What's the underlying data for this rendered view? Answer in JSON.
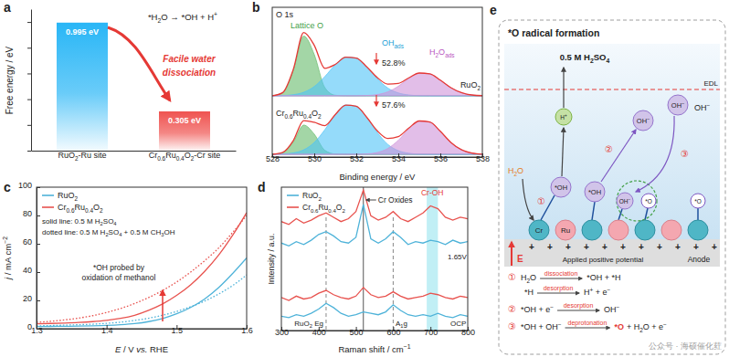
{
  "chart_data": [
    {
      "type": "bar",
      "label": "a",
      "ylabel": "Free energy / eV",
      "categories": [
        "RuO2-Ru site",
        "Cr0.6Ru0.4O2-Cr site"
      ],
      "values": [
        0.995,
        0.305
      ],
      "value_labels": [
        "0.995 eV",
        "0.305 eV"
      ],
      "data_labels": true,
      "colors": [
        "#29b6f6",
        "#ef5350"
      ],
      "ylim": [
        0,
        1.1
      ],
      "yticks": [
        0,
        0.2,
        0.4,
        0.6,
        0.8,
        1.0
      ],
      "tick_labels": "x",
      "annotations": [
        "*H2O → *OH + H+",
        "Facile water",
        "dissociation"
      ]
    },
    {
      "type": "area",
      "label": "b",
      "xlabel": "Binding energy / eV",
      "x": [
        528,
        528.5,
        529,
        529.5,
        530,
        530.5,
        531,
        531.5,
        532,
        532.5,
        533,
        533.5,
        534,
        534.5,
        535,
        535.5,
        536,
        536.5,
        537,
        537.5,
        538
      ],
      "xlim": [
        528,
        538
      ],
      "xticks": [
        528,
        530,
        532,
        534,
        536,
        538
      ],
      "ylim": [
        0,
        11
      ],
      "tick_labels": "x",
      "series": [
        {
          "type": "area",
          "color": "#66bb6a",
          "baseline": 4.5,
          "values": [
            4.5,
            4.72,
            6.35,
            8.89,
            7.53,
            5.11,
            4.54,
            4.5,
            4.5,
            4.5,
            4.5,
            4.5,
            4.5,
            4.5,
            4.5,
            4.5,
            4.5,
            4.5,
            4.5,
            4.5,
            4.5
          ]
        },
        {
          "type": "area",
          "color": "#4fc3f7",
          "baseline": 4.5,
          "values": [
            4.5,
            4.52,
            4.58,
            4.76,
            5.18,
            5.91,
            6.77,
            7.34,
            7.27,
            6.61,
            5.75,
            5.07,
            4.71,
            4.56,
            4.51,
            4.5,
            4.5,
            4.5,
            4.5,
            4.5,
            4.5
          ]
        },
        {
          "type": "area",
          "color": "#ce93d8",
          "baseline": 4.5,
          "values": [
            4.5,
            4.5,
            4.5,
            4.5,
            4.5,
            4.5,
            4.5,
            4.5,
            4.5,
            4.52,
            4.59,
            4.79,
            5.2,
            5.76,
            6.16,
            6.11,
            5.65,
            5.1,
            4.73,
            4.56,
            4.51
          ]
        },
        {
          "type": "line",
          "color": "#e53935",
          "values": [
            4.5,
            4.74,
            6.43,
            9.15,
            8.21,
            6.52,
            6.81,
            7.34,
            7.27,
            6.63,
            5.84,
            5.36,
            5.41,
            5.82,
            6.17,
            6.11,
            5.65,
            5.1,
            4.73,
            4.56,
            4.51
          ]
        },
        {
          "type": "area",
          "color": "#66bb6a",
          "baseline": 0.2,
          "values": [
            0.2,
            0.31,
            1.1,
            2.35,
            1.68,
            0.5,
            0.22,
            0.2,
            0.2,
            0.2,
            0.2,
            0.2,
            0.2,
            0.2,
            0.2,
            0.2,
            0.2,
            0.2,
            0.2,
            0.2,
            0.2
          ]
        },
        {
          "type": "area",
          "color": "#4fc3f7",
          "baseline": 0.2,
          "values": [
            0.2,
            0.23,
            0.3,
            0.53,
            1.07,
            2.0,
            3.1,
            3.82,
            3.73,
            2.89,
            1.8,
            0.93,
            0.47,
            0.28,
            0.21,
            0.2,
            0.2,
            0.2,
            0.2,
            0.2,
            0.2
          ]
        },
        {
          "type": "area",
          "color": "#ce93d8",
          "baseline": 0.2,
          "values": [
            0.2,
            0.2,
            0.2,
            0.2,
            0.2,
            0.2,
            0.2,
            0.2,
            0.2,
            0.23,
            0.33,
            0.63,
            1.23,
            2.05,
            2.64,
            2.57,
            1.89,
            1.08,
            0.54,
            0.29,
            0.21
          ]
        },
        {
          "type": "line",
          "color": "#e53935",
          "values": [
            0.2,
            0.34,
            1.2,
            2.68,
            2.55,
            2.3,
            3.12,
            3.82,
            3.73,
            2.92,
            1.93,
            1.36,
            1.5,
            2.13,
            2.65,
            2.57,
            1.89,
            1.08,
            0.54,
            0.29,
            0.21
          ]
        }
      ],
      "annotations": [
        {
          "text": "O 1s",
          "color": "#222222"
        },
        {
          "text": "Lattice O",
          "color": "#43a047"
        },
        {
          "text": "OHads",
          "color": "#1e9fd6"
        },
        {
          "text": "H2Oads",
          "color": "#b956c0"
        },
        {
          "text": "52.8%",
          "color": "#222222"
        },
        {
          "text": "RuO2",
          "color": "#222222"
        },
        {
          "text": "57.6%",
          "color": "#222222"
        },
        {
          "text": "Cr0.6Ru0.4O2",
          "color": "#222222"
        }
      ]
    },
    {
      "type": "line",
      "label": "c",
      "xlabel": "E / V vs. RHE",
      "ylabel": "j / mA cm−2",
      "x": [
        1.3,
        1.32,
        1.34,
        1.36,
        1.38,
        1.4,
        1.42,
        1.44,
        1.46,
        1.48,
        1.5,
        1.52,
        1.54,
        1.56,
        1.58,
        1.6
      ],
      "xlim": [
        1.3,
        1.6
      ],
      "xticks": [
        1.3,
        1.4,
        1.5,
        1.6
      ],
      "ylim": [
        0,
        100
      ],
      "yticks": [
        0,
        20,
        40,
        60,
        80,
        100
      ],
      "legend": "top-left",
      "series": [
        {
          "name": "RuO2",
          "color": "#4fb3d9",
          "line_style": "solid",
          "values": [
            1.5,
            1.6,
            1.7,
            1.8,
            2.0,
            2.3,
            2.8,
            3.6,
            5.0,
            7.2,
            10.5,
            15,
            21,
            29,
            39,
            50
          ]
        },
        {
          "color": "#4fb3d9",
          "line_style": "dotted",
          "values": [
            2.0,
            2.2,
            2.5,
            2.8,
            3.2,
            3.8,
            4.6,
            5.8,
            7.4,
            9.5,
            12.2,
            15.5,
            19.5,
            24.5,
            30.5,
            38
          ]
        },
        {
          "name": "Cr0.6Ru0.4O2",
          "color": "#e8534f",
          "line_style": "solid",
          "values": [
            3.5,
            3.7,
            4.0,
            4.4,
            5.0,
            5.9,
            7.3,
            9.5,
            13,
            17.5,
            23.5,
            31,
            40.5,
            52,
            66,
            82
          ]
        },
        {
          "color": "#e8534f",
          "line_style": "dotted",
          "values": [
            4.5,
            5.2,
            6.2,
            7.5,
            9.2,
            11.5,
            14.3,
            17.8,
            22,
            27,
            33,
            40,
            48,
            57,
            68,
            80
          ]
        }
      ],
      "annotations": [
        "solid line: 0.5 M H2SO4",
        "dotted line: 0.5 M H2SO4 + 0.5 M CH3OH",
        "*OH probed by",
        "oxidation of methanol"
      ]
    },
    {
      "type": "line",
      "label": "d",
      "xlabel": "Raman shift / cm−1",
      "ylabel": "Intensity / a.u.",
      "x": [
        300,
        320,
        340,
        360,
        380,
        400,
        420,
        440,
        460,
        480,
        500,
        520,
        540,
        560,
        580,
        600,
        620,
        640,
        660,
        680,
        700,
        720,
        740,
        760,
        780,
        800
      ],
      "xlim": [
        300,
        800
      ],
      "xticks": [
        300,
        400,
        500,
        600,
        700,
        800
      ],
      "ylim": [
        0,
        10
      ],
      "tick_labels": "x",
      "legend": "top-left",
      "series": [
        {
          "name": "RuO2",
          "color": "#4fb3d9",
          "values": [
            6.1,
            5.9,
            6.2,
            6.0,
            6.3,
            6.7,
            6.9,
            6.6,
            6.2,
            6.1,
            6.5,
            8.8,
            6.4,
            6.1,
            6.4,
            6.9,
            6.5,
            6.0,
            6.2,
            6.1,
            6.3,
            6.2,
            6.0,
            6.3,
            6.1,
            6.2
          ]
        },
        {
          "name": "Cr0.6Ru0.4O2",
          "color": "#e8534f",
          "values": [
            7.6,
            7.4,
            7.8,
            7.5,
            7.7,
            8.0,
            8.2,
            7.9,
            7.6,
            7.8,
            8.3,
            9.8,
            8.0,
            7.7,
            7.9,
            8.3,
            7.8,
            7.6,
            7.9,
            8.2,
            8.7,
            8.5,
            7.9,
            7.7,
            7.9,
            7.8
          ]
        },
        {
          "color": "#4fb3d9",
          "values": [
            1.0,
            0.9,
            1.1,
            1.0,
            1.2,
            1.5,
            1.9,
            1.6,
            1.2,
            1.0,
            1.1,
            1.3,
            1.2,
            1.1,
            1.3,
            1.8,
            1.4,
            1.1,
            1.0,
            1.1,
            1.0,
            1.2,
            1.0,
            0.9,
            1.1,
            1.0
          ]
        },
        {
          "color": "#e8534f",
          "values": [
            2.3,
            2.1,
            2.4,
            2.2,
            2.3,
            2.6,
            2.8,
            2.5,
            2.3,
            2.2,
            2.4,
            3.0,
            2.5,
            2.3,
            2.4,
            2.7,
            2.4,
            2.2,
            2.3,
            2.4,
            2.6,
            2.5,
            2.3,
            2.2,
            2.4,
            2.3
          ]
        }
      ],
      "vlines": [
        {
          "x": 420,
          "line_style": "dashed"
        },
        {
          "x": 520,
          "line_style": "solid",
          "label": "Cr Oxides"
        },
        {
          "x": 600,
          "line_style": "dashed"
        }
      ],
      "band": {
        "x": [
          690,
          720
        ],
        "label": "Cr-OH",
        "color": "#4dd0e1"
      },
      "annotations": [
        "1.65V",
        "OCP",
        "RuO2 Eg",
        "A1g"
      ]
    }
  ],
  "diagram": {
    "label": "e",
    "title": "*O radical formation",
    "electrolyte": "0.5 M H2SO4",
    "edl": "EDL",
    "species": [
      "H+",
      "OH−",
      "OH−",
      "OH−",
      "H2O",
      "*OH",
      "*OH",
      "OH−",
      "*O",
      "*O"
    ],
    "steps": [
      "①",
      "②",
      "③"
    ],
    "sites": [
      "Cr",
      "Ru"
    ],
    "electrode": {
      "field": "E",
      "potential": "Applied positive potential",
      "name": "Anode",
      "charge": "+"
    },
    "equations": [
      {
        "step": "①",
        "reactant": "H2O",
        "process": "dissociation",
        "product": "*OH + *H"
      },
      {
        "reactant": "*H",
        "process": "desorption",
        "product": "H+ + e−"
      },
      {
        "step": "②",
        "reactant": "*OH + e−",
        "process": "desorption",
        "product": "OH−"
      },
      {
        "step": "③",
        "reactant": "*OH + OH−",
        "process": "deprotonation",
        "product_highlight": "*O",
        "product": "+ H2O + e−"
      }
    ],
    "watermark": "公众号 · 海硕催化荭"
  }
}
